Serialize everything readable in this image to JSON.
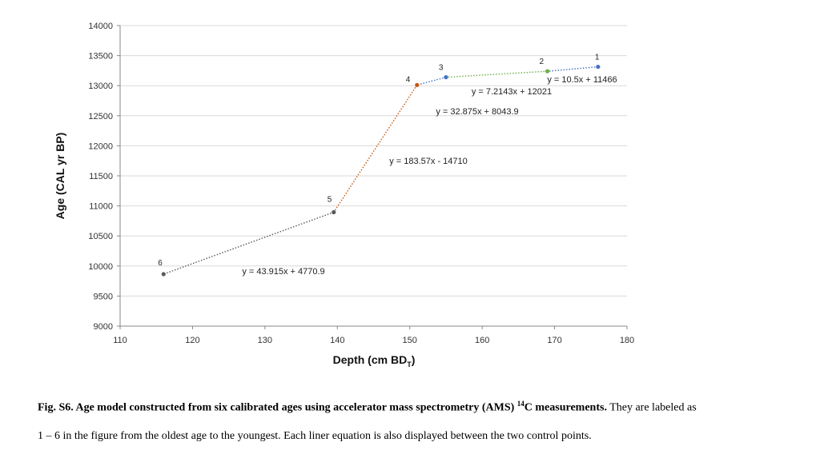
{
  "chart_data": {
    "type": "scatter",
    "xlabel_main": "Depth (cm BD",
    "xlabel_sub": "T",
    "xlabel_end": ")",
    "ylabel": "Age (CAL yr BP)",
    "xlim": [
      110,
      180
    ],
    "ylim": [
      9000,
      14000
    ],
    "x_ticks": [
      110,
      120,
      130,
      140,
      150,
      160,
      170,
      180
    ],
    "y_ticks": [
      9000,
      9500,
      10000,
      10500,
      11000,
      11500,
      12000,
      12500,
      13000,
      13500,
      14000
    ],
    "grid": "horizontal",
    "points": [
      {
        "label": "1",
        "x": 176,
        "y": 13314,
        "color": "#4472c4"
      },
      {
        "label": "2",
        "x": 169,
        "y": 13240,
        "color": "#70ad47"
      },
      {
        "label": "3",
        "x": 155,
        "y": 13141,
        "color": "#4472c4"
      },
      {
        "label": "4",
        "x": 151,
        "y": 13011,
        "color": "#c55a11"
      },
      {
        "label": "5",
        "x": 139.5,
        "y": 10895,
        "color": "#595959"
      },
      {
        "label": "6",
        "x": 116,
        "y": 9865,
        "color": "#595959"
      }
    ],
    "segments": [
      {
        "from": 0,
        "to": 1,
        "color": "#4472c4",
        "equation": "y = 10.5x + 11466"
      },
      {
        "from": 1,
        "to": 2,
        "color": "#70ad47",
        "equation": "y = 7.2143x + 12021"
      },
      {
        "from": 2,
        "to": 3,
        "color": "#4472c4",
        "equation": "y = 32.875x + 8043.9"
      },
      {
        "from": 3,
        "to": 4,
        "color": "#c55a11",
        "equation": "y = 183.57x - 14710"
      },
      {
        "from": 4,
        "to": 5,
        "color": "#595959",
        "equation": "y = 43.915x + 4770.9"
      }
    ]
  },
  "caption": {
    "bold_a": "Fig. S6. Age model constructed from six calibrated ages using accelerator mass spectrometry (AMS) ",
    "sup": "14",
    "bold_b": "C measurements.",
    "line1_rest": " They are labeled as",
    "line2": "1 – 6 in the figure from the oldest age to the youngest. Each liner equation is also displayed between the two control points."
  }
}
